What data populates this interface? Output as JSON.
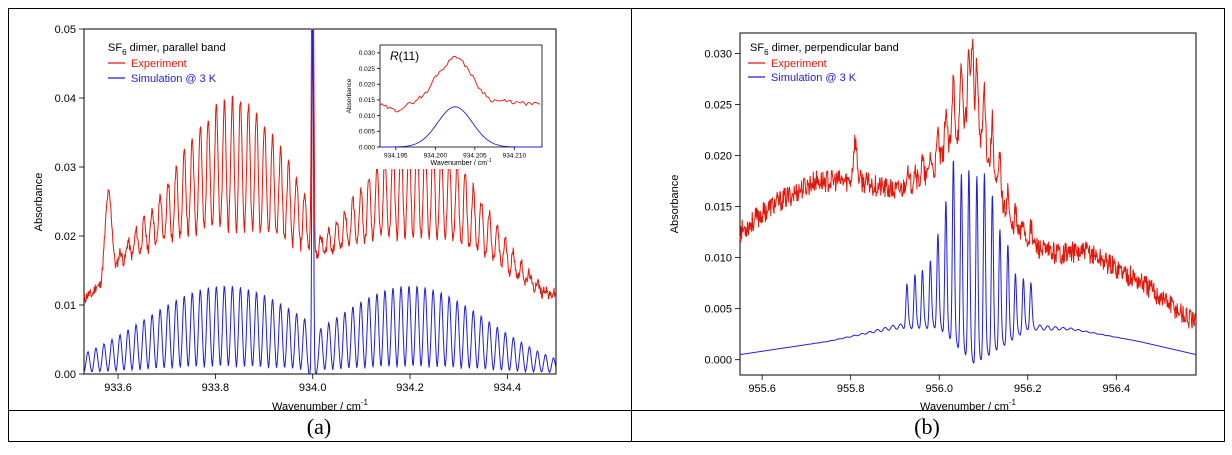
{
  "captions": {
    "a": "(a)",
    "b": "(b)"
  },
  "chart_data": [
    {
      "type": "line",
      "panel": "a",
      "title": "SF6 dimer, parallel band",
      "title_base": "SF",
      "title_sub": "6",
      "title_rest": " dimer, parallel band",
      "xlabel": "Wavenumber / cm",
      "xlabel_sup": "-1",
      "ylabel": "Absorbance",
      "xlim": [
        933.53,
        934.5
      ],
      "ylim": [
        0,
        0.05
      ],
      "xticks": [
        "933.6",
        "933.8",
        "934.0",
        "934.2",
        "934.4"
      ],
      "xtick_values": [
        933.6,
        933.8,
        934.0,
        934.2,
        934.4
      ],
      "yticks": [
        "0.00",
        "0.01",
        "0.02",
        "0.03",
        "0.04",
        "0.05"
      ],
      "ytick_values": [
        0,
        0.01,
        0.02,
        0.03,
        0.04,
        0.05
      ],
      "legend_position": "top-left",
      "series": [
        {
          "name": "Experiment",
          "color": "#e3170a",
          "envelope_peak_low": 0.033,
          "envelope_peak_high": 0.029,
          "baseline_low": 0.012,
          "baseline_high": 0.013,
          "strong_line_x": 934.0,
          "strong_line_y": 0.05
        },
        {
          "name": "Simulation @ 3 K",
          "color": "#1f1fd6",
          "line_spacing": 0.0165,
          "envelope_peak_low": 0.0128,
          "envelope_peak_high": 0.0128,
          "envelope_center_low": 933.82,
          "envelope_center_high": 934.2,
          "strong_line_x": 934.0,
          "strong_line_y": 0.05
        }
      ],
      "inset": {
        "label": "R(11)",
        "label_italic": "R",
        "label_rest": "(11)",
        "xlabel": "Wavenumber / cm",
        "xlabel_sup": "-1",
        "ylabel": "Absorbance",
        "xlim": [
          934.193,
          934.2135
        ],
        "ylim": [
          0,
          0.0325
        ],
        "xticks": [
          "934.195",
          "934.200",
          "934.205",
          "934.210"
        ],
        "xtick_values": [
          934.195,
          934.2,
          934.205,
          934.21
        ],
        "yticks": [
          "0.000",
          "0.005",
          "0.010",
          "0.015",
          "0.020",
          "0.025",
          "0.030"
        ],
        "ytick_values": [
          0,
          0.005,
          0.01,
          0.015,
          0.02,
          0.025,
          0.03
        ],
        "experiment": {
          "x": [
            934.193,
            934.195,
            934.197,
            934.199,
            934.2,
            934.2015,
            934.2025,
            934.204,
            934.2055,
            934.207,
            934.209,
            934.2115,
            934.2135
          ],
          "y": [
            0.0135,
            0.0115,
            0.014,
            0.0175,
            0.0225,
            0.0265,
            0.0295,
            0.0255,
            0.019,
            0.015,
            0.0145,
            0.0138,
            0.0137
          ]
        },
        "simulation": {
          "center": 934.2025,
          "peak": 0.0128,
          "width": 0.0022
        }
      }
    },
    {
      "type": "line",
      "panel": "b",
      "title": "SF6 dimer, perpendicular band",
      "title_base": "SF",
      "title_sub": "6",
      "title_rest": " dimer, perpendicular band",
      "xlabel": "Wavenumber / cm",
      "xlabel_sup": "-1",
      "ylabel": "Absorbance",
      "xlim": [
        955.55,
        956.58
      ],
      "ylim": [
        -0.0015,
        0.032
      ],
      "xticks": [
        "955.6",
        "955.8",
        "956.0",
        "956.2",
        "956.4"
      ],
      "xtick_values": [
        955.6,
        955.8,
        956.0,
        956.2,
        956.4
      ],
      "yticks": [
        "0.000",
        "0.005",
        "0.010",
        "0.015",
        "0.020",
        "0.025",
        "0.030"
      ],
      "ytick_values": [
        0,
        0.005,
        0.01,
        0.015,
        0.02,
        0.025,
        0.03
      ],
      "legend_position": "top-left",
      "series": [
        {
          "name": "Experiment",
          "color": "#e3170a",
          "envelope_x": [
            955.55,
            955.62,
            955.72,
            955.82,
            955.9,
            955.98,
            956.04,
            956.07,
            956.1,
            956.16,
            956.24,
            956.34,
            956.46,
            956.58
          ],
          "envelope_y": [
            0.0125,
            0.015,
            0.0175,
            0.0175,
            0.0165,
            0.018,
            0.022,
            0.0245,
            0.021,
            0.013,
            0.0105,
            0.0105,
            0.0075,
            0.0035
          ],
          "peak_x": 956.075,
          "peak_y": 0.032
        },
        {
          "name": "Simulation @ 3 K",
          "color": "#1f1fd6",
          "baseline_x": [
            955.55,
            955.75,
            955.9,
            956.0,
            956.08,
            956.2,
            956.3,
            956.45,
            956.58
          ],
          "baseline_y": [
            0.0005,
            0.0018,
            0.0032,
            0.0035,
            0.0,
            0.0032,
            0.003,
            0.0018,
            0.0005
          ],
          "peak_x": [
            955.927,
            955.945,
            955.962,
            955.98,
            955.997,
            956.015,
            956.032,
            956.05,
            956.067,
            956.085,
            956.102,
            956.12,
            956.137,
            956.155,
            956.172,
            956.19,
            956.207
          ],
          "peak_y": [
            0.004,
            0.0048,
            0.0052,
            0.006,
            0.0086,
            0.0124,
            0.0173,
            0.0165,
            0.0178,
            0.0175,
            0.0174,
            0.0148,
            0.011,
            0.009,
            0.0058,
            0.0048,
            0.0042
          ]
        }
      ]
    }
  ]
}
